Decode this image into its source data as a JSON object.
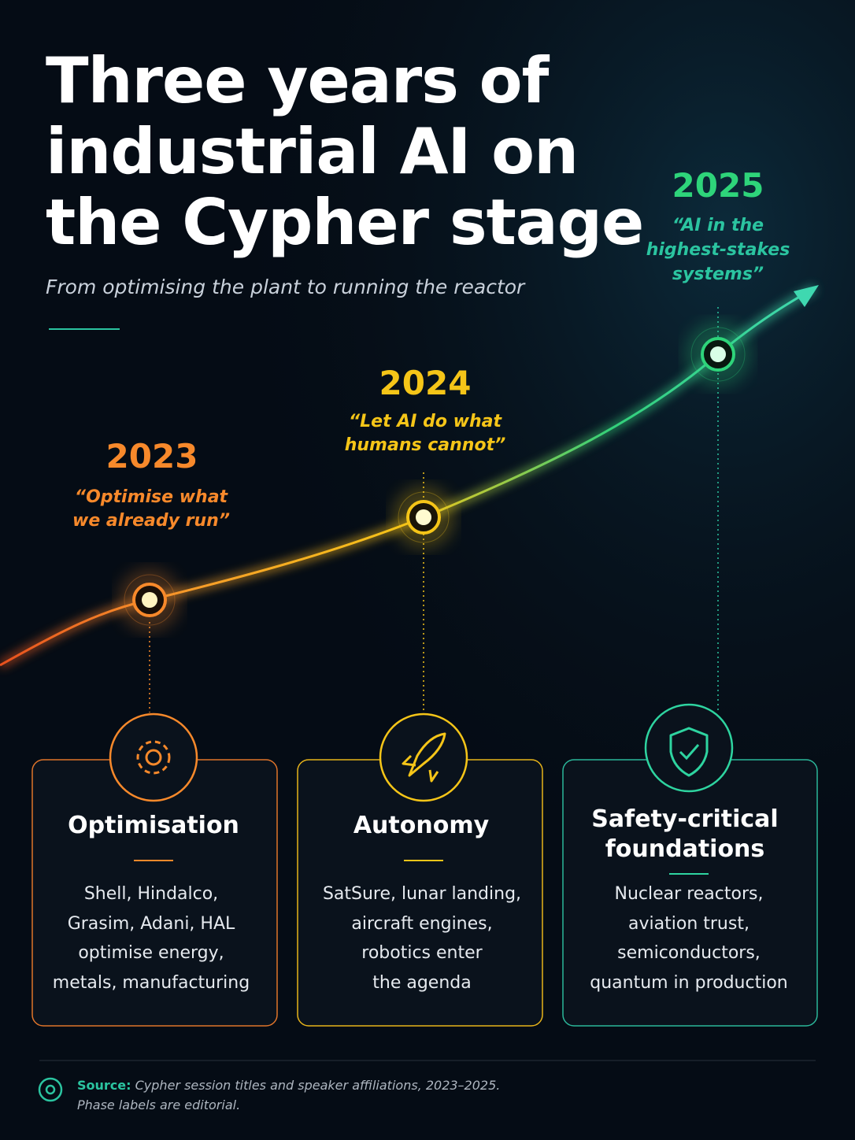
{
  "header": {
    "title": [
      "Three years of",
      "industrial AI on",
      "the Cypher stage"
    ],
    "subtitle": "From optimising the plant to running the reactor"
  },
  "milestones": [
    {
      "year": "2023",
      "quote": [
        "“Optimise what",
        "we already run”"
      ]
    },
    {
      "year": "2024",
      "quote": [
        "“Let AI do what",
        "humans cannot”"
      ]
    },
    {
      "year": "2025",
      "quote": [
        "“AI in the",
        "highest-stakes",
        "systems”"
      ]
    }
  ],
  "cards": [
    {
      "title": [
        "Optimisation"
      ],
      "body": [
        "Shell, Hindalco,",
        "Grasim, Adani, HAL",
        "optimise energy,",
        "metals, manufacturing"
      ]
    },
    {
      "title": [
        "Autonomy"
      ],
      "body": [
        "SatSure, lunar landing,",
        "aircraft engines,",
        "robotics enter",
        "the agenda"
      ]
    },
    {
      "title": [
        "Safety-critical",
        "foundations"
      ],
      "body": [
        "Nuclear reactors,",
        "aviation trust,",
        "semiconductors,",
        "quantum in production"
      ]
    }
  ],
  "footer": {
    "source_label": "Source:",
    "source_text": "Cypher session titles and speaker affiliations, 2023–2025.",
    "note": "Phase labels are editorial."
  }
}
